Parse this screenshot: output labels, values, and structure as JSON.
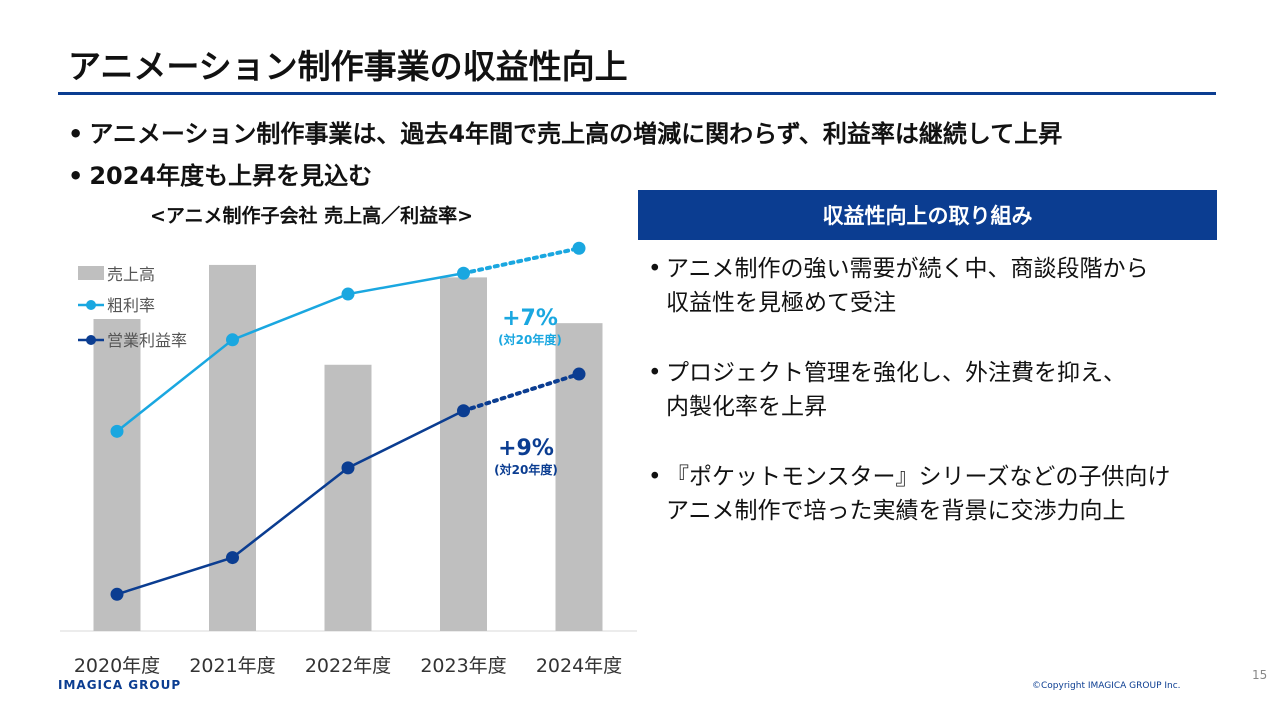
{
  "slide": {
    "title": "アニメーション制作事業の収益性向上",
    "bullets": [
      "アニメーション制作事業は、過去4年間で売上高の増減に関わらず、利益率は継続して上昇",
      "2024年度も上昇を見込む"
    ],
    "page_number": "15",
    "logo": "IMAGICA GROUP",
    "copyright": "©Copyright IMAGICA GROUP Inc."
  },
  "panel": {
    "heading": "収益性向上の取り組み",
    "items": [
      {
        "line1": "アニメ制作の強い需要が続く中、商談段階から",
        "line2": "収益性を見極めて受注"
      },
      {
        "line1": "プロジェクト管理を強化し、外注費を抑え、",
        "line2": "内製化率を上昇"
      },
      {
        "line1": "『ポケットモンスター』シリーズなどの子供向け",
        "line2": "アニメ制作で培った実績を背景に交渉力向上"
      }
    ]
  },
  "colors": {
    "brand": "#0b3d91",
    "bar": "#bfbfbf",
    "gross": "#1aa7e0",
    "operating": "#0b3d91"
  },
  "chart_data": {
    "type": "bar",
    "title": "<アニメ制作子会社 売上高／利益率>",
    "categories": [
      "2020年度",
      "2021年度",
      "2022年度",
      "2023年度",
      "2024年度"
    ],
    "legend": [
      "売上高",
      "粗利率",
      "営業利益率"
    ],
    "legend_position": "top-left",
    "series": [
      {
        "name": "売上高",
        "kind": "bar",
        "values": [
          75,
          88,
          64,
          85,
          74
        ],
        "ylim": [
          0,
          100
        ]
      },
      {
        "name": "粗利率",
        "kind": "line",
        "values": [
          48,
          70,
          81,
          86,
          92
        ],
        "ylim": [
          0,
          100
        ],
        "dotted_from_index": 3
      },
      {
        "name": "営業利益率",
        "kind": "line",
        "values": [
          7,
          16,
          38,
          52,
          61
        ],
        "ylim": [
          -2,
          100
        ],
        "dotted_from_index": 3
      }
    ],
    "annotations": [
      {
        "series": "粗利率",
        "value": "+7%",
        "note": "(対20年度)"
      },
      {
        "series": "営業利益率",
        "value": "+9%",
        "note": "(対20年度)"
      }
    ]
  }
}
